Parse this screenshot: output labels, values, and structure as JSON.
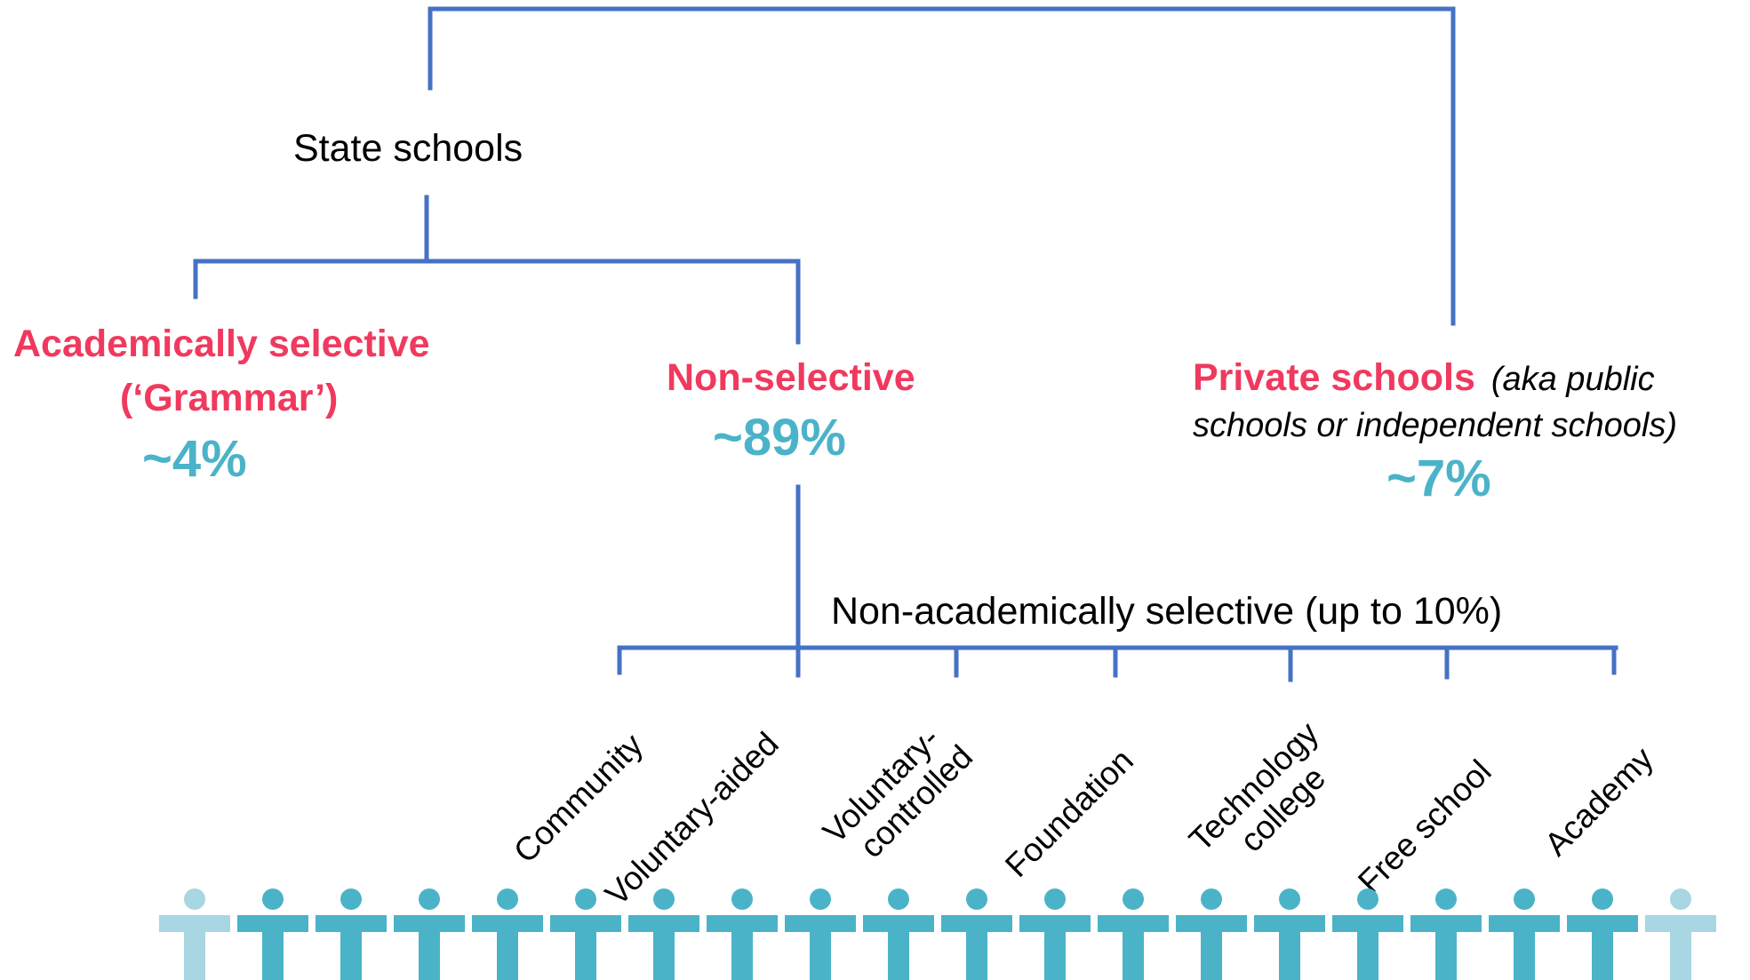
{
  "colors": {
    "connector": "#4472c4",
    "category_red": "#f0395e",
    "percent_teal": "#4bb3c8",
    "person_dark": "#4bb3c8",
    "person_light": "#a8d6e3"
  },
  "nodes": {
    "state": {
      "label": "State schools"
    },
    "grammar": {
      "line1": "Academically selective",
      "line2": "(‘Grammar’)",
      "percent": "~4%"
    },
    "nonselective": {
      "label": "Non-selective",
      "percent": "~89%"
    },
    "private": {
      "label": "Private schools",
      "note_line1": "(aka public",
      "note_line2": "schools or independent schools)",
      "percent": "~7%"
    },
    "non_academic": {
      "label": "Non-academically selective (up to 10%)"
    }
  },
  "school_types": [
    {
      "line1": "Community",
      "line2": ""
    },
    {
      "line1": "Voluntary-aided",
      "line2": ""
    },
    {
      "line1": "Voluntary-",
      "line2": "controlled"
    },
    {
      "line1": "Foundation",
      "line2": ""
    },
    {
      "line1": "Technology",
      "line2": "college"
    },
    {
      "line1": "Free school",
      "line2": ""
    },
    {
      "line1": "Academy",
      "line2": ""
    }
  ],
  "people": {
    "count": 20,
    "light_positions": [
      1,
      20
    ],
    "icon": "person-icon"
  }
}
